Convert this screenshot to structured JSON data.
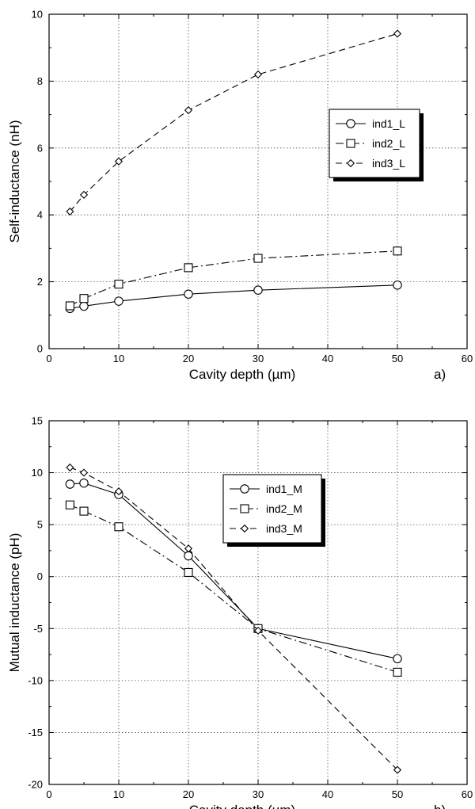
{
  "chart_data": [
    {
      "type": "line",
      "panel_label": "a)",
      "title": "",
      "xlabel": "Cavity depth (µm)",
      "ylabel": "Self-inductance (nH)",
      "xlim": [
        0,
        60
      ],
      "ylim": [
        0,
        10
      ],
      "xticks": [
        "0",
        "10",
        "20",
        "30",
        "40",
        "50",
        "60"
      ],
      "yticks": [
        "0",
        "2",
        "4",
        "6",
        "8",
        "10"
      ],
      "grid": true,
      "legend_position": "right",
      "x": [
        3,
        5,
        10,
        20,
        30,
        50
      ],
      "series": [
        {
          "name": "ind1_L",
          "marker": "circle",
          "dash": "solid",
          "values": [
            1.2,
            1.27,
            1.42,
            1.63,
            1.75,
            1.9
          ]
        },
        {
          "name": "ind2_L",
          "marker": "square",
          "dash": "dashdot",
          "values": [
            1.28,
            1.5,
            1.93,
            2.42,
            2.7,
            2.92
          ]
        },
        {
          "name": "ind3_L",
          "marker": "diamond",
          "dash": "dashed",
          "values": [
            4.1,
            4.6,
            5.6,
            7.13,
            8.2,
            9.42
          ]
        }
      ]
    },
    {
      "type": "line",
      "panel_label": "b)",
      "title": "",
      "xlabel": "Cavity depth (µm)",
      "ylabel": "Mutual inductance (pH)",
      "xlim": [
        0,
        60
      ],
      "ylim": [
        -20,
        15
      ],
      "xticks": [
        "0",
        "10",
        "20",
        "30",
        "40",
        "50",
        "60"
      ],
      "yticks": [
        "-20",
        "-15",
        "-10",
        "-5",
        "0",
        "5",
        "10",
        "15"
      ],
      "grid": true,
      "legend_position": "top-center",
      "x": [
        3,
        5,
        10,
        20,
        30,
        50
      ],
      "series": [
        {
          "name": "ind1_M",
          "marker": "circle",
          "dash": "solid",
          "values": [
            8.9,
            9.0,
            7.9,
            2.0,
            -5.0,
            -7.9
          ]
        },
        {
          "name": "ind2_M",
          "marker": "square",
          "dash": "dashdot",
          "values": [
            6.9,
            6.3,
            4.8,
            0.4,
            -5.0,
            -9.2
          ]
        },
        {
          "name": "ind3_M",
          "marker": "diamond",
          "dash": "dashed",
          "values": [
            10.5,
            10.0,
            8.2,
            2.7,
            -5.2,
            -18.6
          ]
        }
      ]
    }
  ]
}
